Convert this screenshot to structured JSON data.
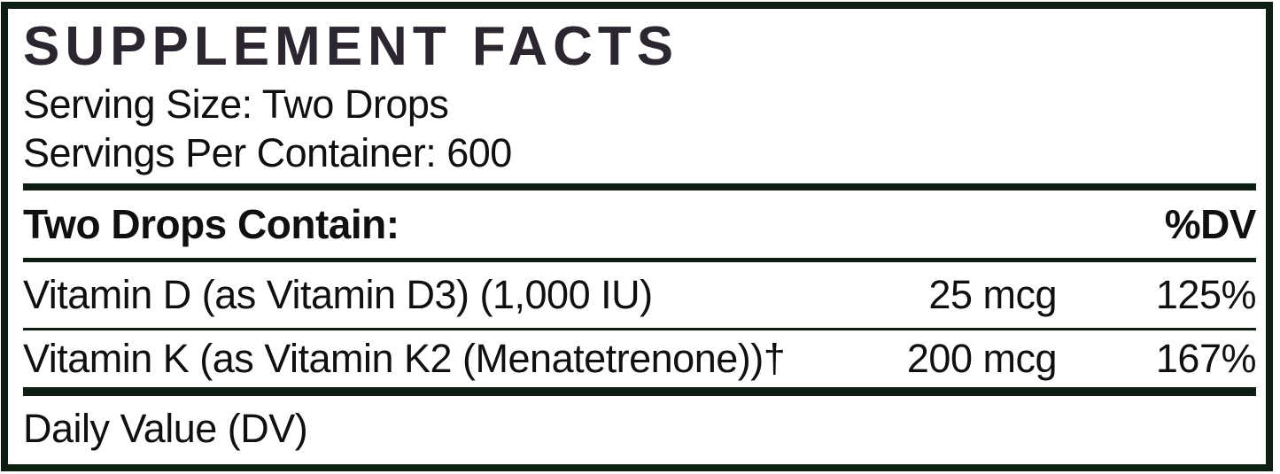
{
  "label": {
    "title": "SUPPLEMENT FACTS",
    "serving_size_line": "Serving Size: Two Drops",
    "servings_per_container_line": "Servings Per Container: 600",
    "table": {
      "header": {
        "contains_label": "Two Drops Contain:",
        "dv_label": "%DV"
      },
      "rows": [
        {
          "name": "Vitamin D (as Vitamin D3) (1,000 IU)",
          "amount": "25 mcg",
          "dv": "125%"
        },
        {
          "name": "Vitamin K (as Vitamin K2 (Menatetrenone))†",
          "amount": "200 mcg",
          "dv": "167%"
        }
      ]
    },
    "footnote": "Daily Value (DV)"
  },
  "colors": {
    "border": "#0d1e13",
    "title_text": "#2b2630",
    "body_text": "#101010"
  }
}
